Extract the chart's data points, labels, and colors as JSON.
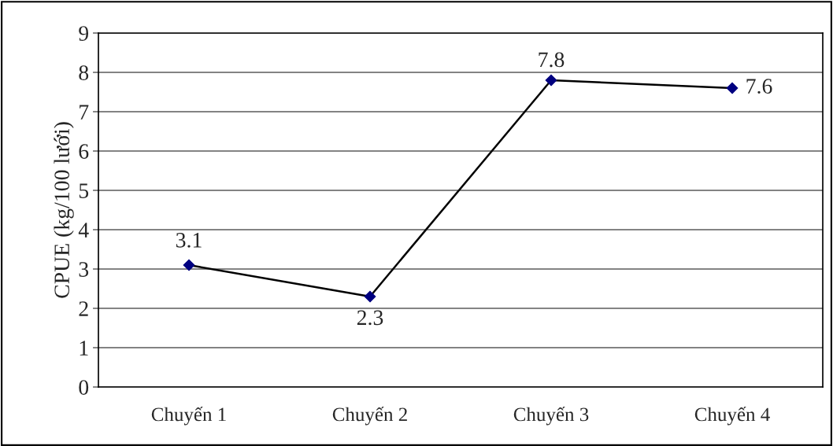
{
  "chart_data": {
    "type": "line",
    "ylabel": "CPUE (kg/100 lưới)",
    "categories": [
      "Chuyến 1",
      "Chuyến 2",
      "Chuyến 3",
      "Chuyến 4"
    ],
    "series": [
      {
        "color": "#000000",
        "values": [
          3.1,
          2.3,
          7.8,
          7.6
        ]
      }
    ],
    "ylim": [
      0,
      9
    ],
    "yticks": [
      0,
      1,
      2,
      3,
      4,
      5,
      6,
      7,
      8,
      9
    ],
    "grid": "y",
    "marker": "diamond",
    "line_style": "solid",
    "data_labels": true
  }
}
